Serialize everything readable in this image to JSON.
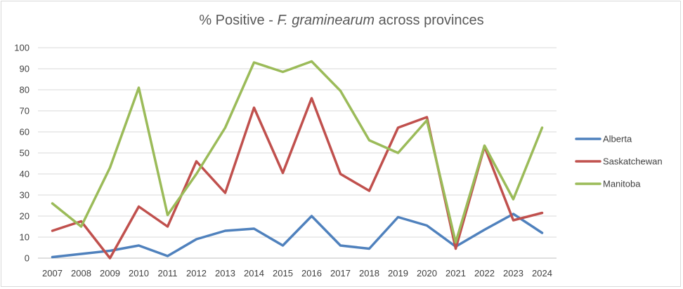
{
  "chart_data": {
    "type": "line",
    "title_parts": [
      "% Positive - ",
      "F. graminearum",
      " across provinces"
    ],
    "categories": [
      "2007",
      "2008",
      "2009",
      "2010",
      "2011",
      "2012",
      "2013",
      "2014",
      "2015",
      "2016",
      "2017",
      "2018",
      "2019",
      "2020",
      "2021",
      "2022",
      "2023",
      "2024"
    ],
    "ylim": [
      0,
      100
    ],
    "yticks": [
      0,
      10,
      20,
      30,
      40,
      50,
      60,
      70,
      80,
      90,
      100
    ],
    "grid": true,
    "legend_position": "right",
    "series": [
      {
        "name": "Alberta",
        "color": "#4f81bd",
        "values": [
          0.5,
          2,
          3.5,
          6,
          1,
          9,
          13,
          14,
          6,
          20,
          6,
          4.5,
          19.5,
          15.5,
          5.5,
          13.5,
          21,
          12
        ]
      },
      {
        "name": "Saskatchewan",
        "color": "#c0504d",
        "values": [
          13,
          17.5,
          0,
          24.5,
          15,
          46,
          31,
          71.5,
          40.5,
          76,
          40,
          32,
          62,
          67,
          4.5,
          53,
          18,
          21.5
        ]
      },
      {
        "name": "Manitoba",
        "color": "#9bbb59",
        "values": [
          26,
          15,
          43,
          81,
          20.5,
          40,
          62,
          93,
          88.5,
          93.5,
          79.5,
          56,
          50,
          65.5,
          7.5,
          53.5,
          28,
          62
        ]
      }
    ]
  }
}
